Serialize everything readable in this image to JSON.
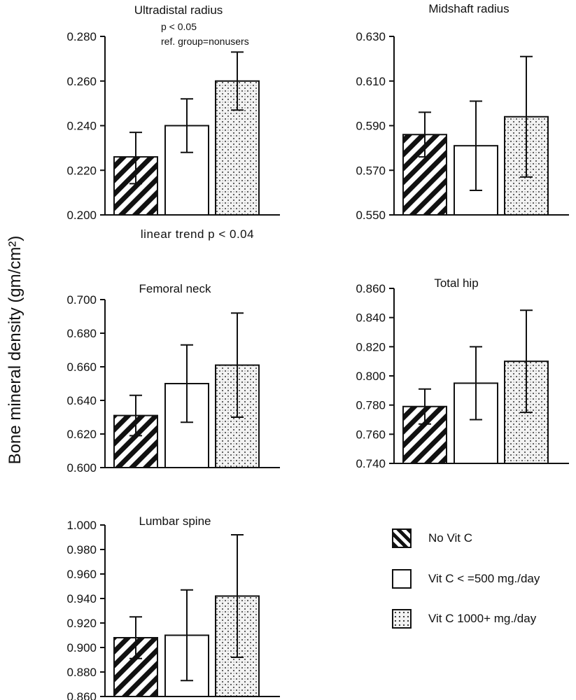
{
  "y_axis_label": "Bone mineral density (gm/cm²)",
  "legend": [
    {
      "label": "No Vit C",
      "pattern": "hatch"
    },
    {
      "label": "Vit C < =500 mg./day",
      "pattern": "open"
    },
    {
      "label": "Vit C 1000+ mg./day",
      "pattern": "stipple"
    }
  ],
  "colors": {
    "ink": "#111111",
    "fill": "#ffffff",
    "dots": "#333333"
  },
  "chart_data": [
    {
      "id": "ultradistal-radius",
      "type": "bar",
      "title": "Ultradistal radius",
      "annotations": [
        "p < 0.05",
        "ref. group=nonusers"
      ],
      "footnote": "linear trend p < 0.04",
      "categories": [
        "No Vit C",
        "Vit C < =500 mg./day",
        "Vit C 1000+ mg./day"
      ],
      "values": [
        0.226,
        0.24,
        0.26
      ],
      "error_low": [
        0.214,
        0.228,
        0.247
      ],
      "error_high": [
        0.237,
        0.252,
        0.273
      ],
      "ylim": [
        0.2,
        0.28
      ],
      "yticks": [
        0.2,
        0.22,
        0.24,
        0.26,
        0.28
      ],
      "tick_labels": [
        "0.200",
        "0.220",
        "0.240",
        "0.260",
        "0.280"
      ]
    },
    {
      "id": "midshaft-radius",
      "type": "bar",
      "title": "Midshaft radius",
      "categories": [
        "No Vit C",
        "Vit C < =500 mg./day",
        "Vit C 1000+ mg./day"
      ],
      "values": [
        0.586,
        0.581,
        0.594
      ],
      "error_low": [
        0.576,
        0.561,
        0.567
      ],
      "error_high": [
        0.596,
        0.601,
        0.621
      ],
      "ylim": [
        0.55,
        0.63
      ],
      "yticks": [
        0.55,
        0.57,
        0.59,
        0.61,
        0.63
      ],
      "tick_labels": [
        "0.550",
        "0.570",
        "0.590",
        "0.610",
        "0.630"
      ]
    },
    {
      "id": "femoral-neck",
      "type": "bar",
      "title": "Femoral neck",
      "categories": [
        "No Vit C",
        "Vit C < =500 mg./day",
        "Vit C 1000+ mg./day"
      ],
      "values": [
        0.631,
        0.65,
        0.661
      ],
      "error_low": [
        0.619,
        0.627,
        0.63
      ],
      "error_high": [
        0.643,
        0.673,
        0.692
      ],
      "ylim": [
        0.6,
        0.7
      ],
      "yticks": [
        0.6,
        0.62,
        0.64,
        0.66,
        0.68,
        0.7
      ],
      "tick_labels": [
        "0.600",
        "0.620",
        "0.640",
        "0.660",
        "0.680",
        "0.700"
      ]
    },
    {
      "id": "total-hip",
      "type": "bar",
      "title": "Total hip",
      "categories": [
        "No Vit C",
        "Vit C < =500 mg./day",
        "Vit C 1000+ mg./day"
      ],
      "values": [
        0.779,
        0.795,
        0.81
      ],
      "error_low": [
        0.767,
        0.77,
        0.775
      ],
      "error_high": [
        0.791,
        0.82,
        0.845
      ],
      "ylim": [
        0.74,
        0.86
      ],
      "yticks": [
        0.74,
        0.76,
        0.78,
        0.8,
        0.82,
        0.84,
        0.86
      ],
      "tick_labels": [
        "0.740",
        "0.760",
        "0.780",
        "0.800",
        "0.820",
        "0.840",
        "0.860"
      ]
    },
    {
      "id": "lumbar-spine",
      "type": "bar",
      "title": "Lumbar spine",
      "categories": [
        "No Vit C",
        "Vit C < =500 mg./day",
        "Vit C 1000+ mg./day"
      ],
      "values": [
        0.908,
        0.91,
        0.942
      ],
      "error_low": [
        0.891,
        0.873,
        0.892
      ],
      "error_high": [
        0.925,
        0.947,
        0.992
      ],
      "ylim": [
        0.86,
        1.0
      ],
      "yticks": [
        0.86,
        0.88,
        0.9,
        0.92,
        0.94,
        0.96,
        0.98,
        1.0
      ],
      "tick_labels": [
        "0.860",
        "0.880",
        "0.900",
        "0.920",
        "0.940",
        "0.960",
        "0.980",
        "1.000"
      ]
    }
  ]
}
